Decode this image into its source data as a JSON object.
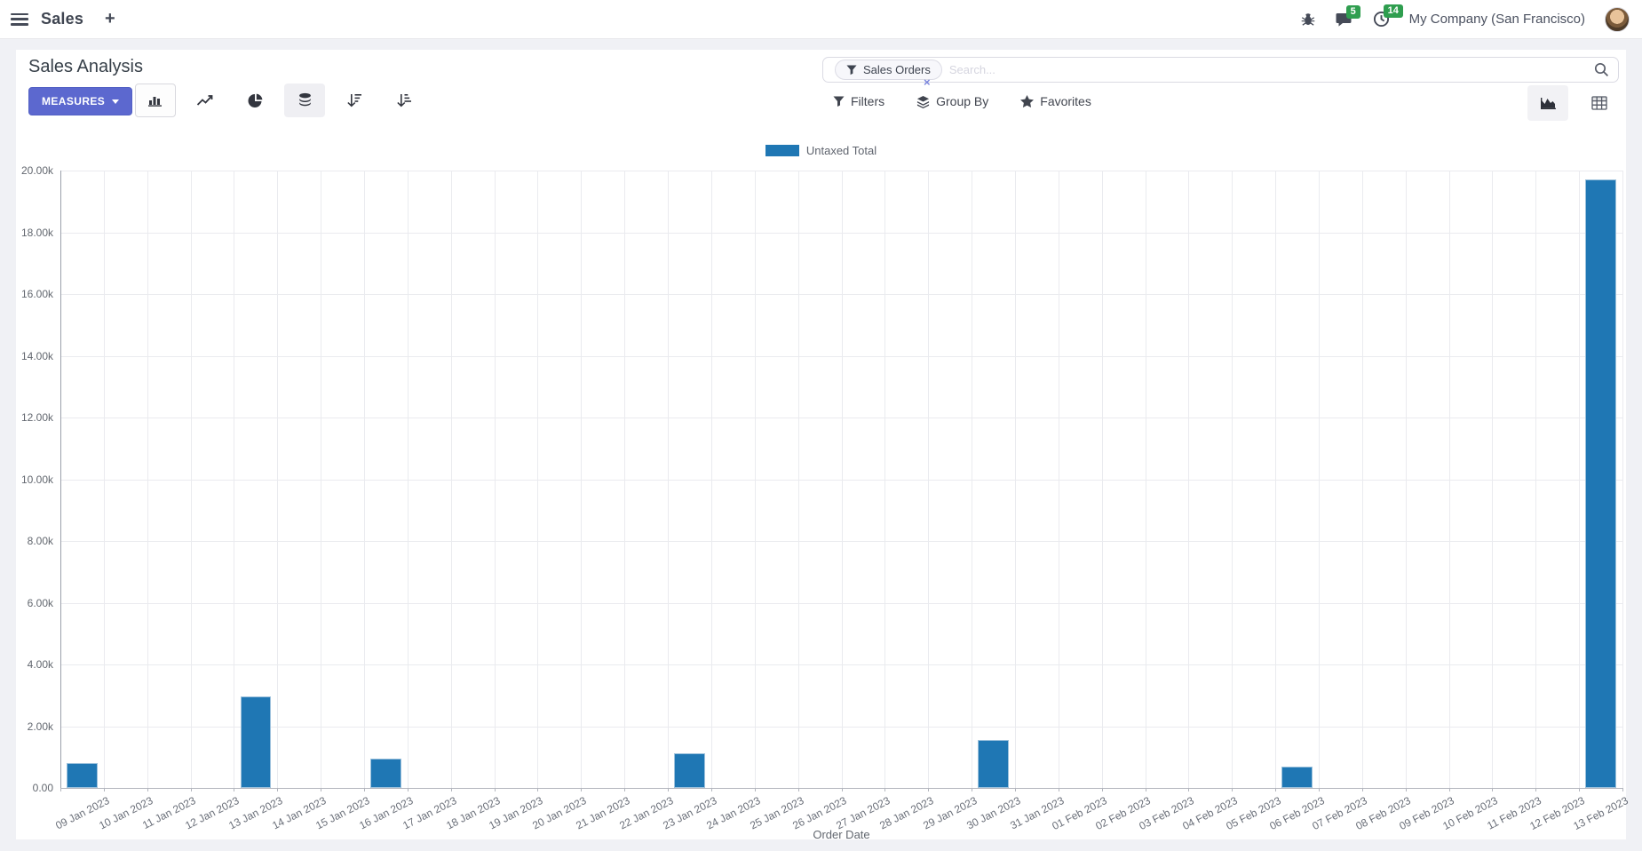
{
  "navbar": {
    "app_name": "Sales",
    "plus_label": "+",
    "messages_count": "5",
    "activities_count": "14",
    "company": "My Company (San Francisco)"
  },
  "control_panel": {
    "title": "Sales Analysis",
    "measures_label": "MEASURES",
    "search": {
      "facet": "Sales Orders",
      "remove_label": "×",
      "placeholder": "Search..."
    },
    "filters_label": "Filters",
    "group_by_label": "Group By",
    "favorites_label": "Favorites"
  },
  "chart_data": {
    "type": "bar",
    "title": "",
    "xlabel": "Order Date",
    "ylabel": "",
    "ylim": [
      0,
      20000
    ],
    "grid": true,
    "legend_position": "top-center",
    "y_ticks": [
      "20.00k",
      "18.00k",
      "16.00k",
      "14.00k",
      "12.00k",
      "10.00k",
      "8.00k",
      "6.00k",
      "4.00k",
      "2.00k",
      "0.00"
    ],
    "categories": [
      "09 Jan 2023",
      "10 Jan 2023",
      "11 Jan 2023",
      "12 Jan 2023",
      "13 Jan 2023",
      "14 Jan 2023",
      "15 Jan 2023",
      "16 Jan 2023",
      "17 Jan 2023",
      "18 Jan 2023",
      "19 Jan 2023",
      "20 Jan 2023",
      "21 Jan 2023",
      "22 Jan 2023",
      "23 Jan 2023",
      "24 Jan 2023",
      "25 Jan 2023",
      "26 Jan 2023",
      "27 Jan 2023",
      "28 Jan 2023",
      "29 Jan 2023",
      "30 Jan 2023",
      "31 Jan 2023",
      "01 Feb 2023",
      "02 Feb 2023",
      "03 Feb 2023",
      "04 Feb 2023",
      "05 Feb 2023",
      "06 Feb 2023",
      "07 Feb 2023",
      "08 Feb 2023",
      "09 Feb 2023",
      "10 Feb 2023",
      "11 Feb 2023",
      "12 Feb 2023",
      "13 Feb 2023"
    ],
    "series": [
      {
        "name": "Untaxed Total",
        "color": "#1f77b4",
        "values": [
          800,
          0,
          0,
          0,
          2950,
          0,
          0,
          950,
          0,
          0,
          0,
          0,
          0,
          0,
          1130,
          0,
          0,
          0,
          0,
          0,
          0,
          1550,
          0,
          0,
          0,
          0,
          0,
          0,
          680,
          0,
          0,
          0,
          0,
          0,
          0,
          19700
        ]
      }
    ]
  },
  "colors": {
    "accent": "#5c68cf",
    "bar": "#1f77b4",
    "badge": "#2f9e4f",
    "page_bg": "#f0f1f5"
  }
}
